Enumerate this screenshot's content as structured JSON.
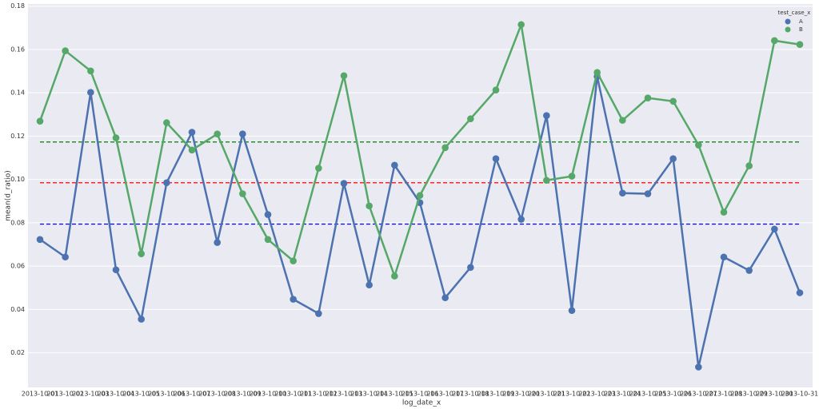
{
  "chart_data": {
    "type": "line",
    "x_label": "log_date_x",
    "y_label": "mean(d_ratio)",
    "categories": [
      "2013-10-01",
      "2013-10-02",
      "2013-10-03",
      "2013-10-04",
      "2013-10-05",
      "2013-10-06",
      "2013-10-07",
      "2013-10-08",
      "2013-10-09",
      "2013-10-10",
      "2013-10-11",
      "2013-10-12",
      "2013-10-13",
      "2013-10-14",
      "2013-10-15",
      "2013-10-16",
      "2013-10-17",
      "2013-10-18",
      "2013-10-19",
      "2013-10-20",
      "2013-10-21",
      "2013-10-22",
      "2013-10-23",
      "2013-10-24",
      "2013-10-25",
      "2013-10-26",
      "2013-10-27",
      "2013-10-28",
      "2013-10-29",
      "2013-10-30",
      "2013-10-31"
    ],
    "series": [
      {
        "name": "A",
        "color": "#4c72b0",
        "values": [
          0.0723,
          0.0642,
          0.1402,
          0.0583,
          0.0355,
          0.0985,
          0.1218,
          0.0709,
          0.121,
          0.0838,
          0.0447,
          0.0381,
          0.0982,
          0.0513,
          0.1066,
          0.0893,
          0.0454,
          0.0594,
          0.1096,
          0.0816,
          0.1295,
          0.0395,
          0.1475,
          0.0937,
          0.0934,
          0.1096,
          0.0134,
          0.0642,
          0.058,
          0.0771,
          0.0477
        ]
      },
      {
        "name": "B",
        "color": "#55a868",
        "values": [
          0.1269,
          0.1594,
          0.1501,
          0.1192,
          0.0657,
          0.1262,
          0.1136,
          0.121,
          0.0934,
          0.0723,
          0.0624,
          0.1052,
          0.1479,
          0.0878,
          0.0554,
          0.0926,
          0.1147,
          0.128,
          0.1413,
          0.1715,
          0.0996,
          0.1015,
          0.1494,
          0.1273,
          0.1376,
          0.1361,
          0.1159,
          0.0849,
          0.1063,
          0.1641,
          0.1623
        ]
      }
    ],
    "reference_lines": [
      {
        "value": 0.1173,
        "color": "#008000"
      },
      {
        "value": 0.0985,
        "color": "#ff0000"
      },
      {
        "value": 0.0794,
        "color": "#0000ff"
      }
    ],
    "legend_title": "test_case_x",
    "legend_position": "upper right",
    "ylim": [
      0.004,
      0.181
    ],
    "yticks": [
      0.02,
      0.04,
      0.06,
      0.08,
      {
        "value": 0.1,
        "label": "0.10"
      },
      0.12,
      0.14,
      0.16,
      0.18
    ],
    "grid": true
  }
}
